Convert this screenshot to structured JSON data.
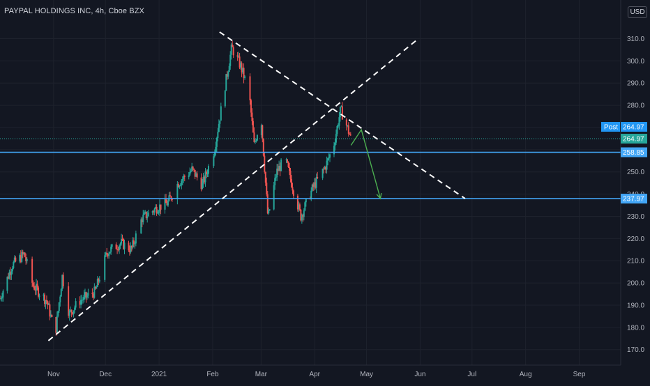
{
  "header": {
    "title": "PAYPAL HOLDINGS INC, 4h, Cboe BZX",
    "currency": "USD"
  },
  "price_tags": {
    "post_label": "Post",
    "post_value": "264.97",
    "last_value": "264.97",
    "level_1": "258.85",
    "level_2": "237.97"
  },
  "colors": {
    "background": "#131722",
    "up": "#26a69a",
    "down": "#ef5350",
    "level_line": "#42a5f5",
    "trend_line": "#ffffff",
    "projection": "#4caf50",
    "post_tag": "#2196f3",
    "last_tag": "#26a69a"
  },
  "chart_data": {
    "type": "candlestick",
    "title": "PAYPAL HOLDINGS INC, 4h, Cboe BZX",
    "interval": "4h",
    "exchange": "Cboe BZX",
    "currency": "USD",
    "x_ticks": [
      "Nov",
      "Dec",
      "2021",
      "Feb",
      "Mar",
      "Apr",
      "May",
      "Jun",
      "Jul",
      "Aug",
      "Sep"
    ],
    "y_ticks": [
      170,
      180,
      190,
      200,
      210,
      220,
      230,
      240,
      250,
      260,
      270,
      280,
      290,
      300,
      310
    ],
    "ylim": [
      163,
      318
    ],
    "xlim": [
      "2020-10-01",
      "2021-09-25"
    ],
    "grid": true,
    "price_path": [
      [
        "2020-10-01",
        193
      ],
      [
        "2020-10-08",
        208
      ],
      [
        "2020-10-15",
        213
      ],
      [
        "2020-10-20",
        199
      ],
      [
        "2020-10-28",
        192
      ],
      [
        "2020-11-02",
        177
      ],
      [
        "2020-11-06",
        203
      ],
      [
        "2020-11-10",
        186
      ],
      [
        "2020-11-16",
        192
      ],
      [
        "2020-11-25",
        196
      ],
      [
        "2020-12-02",
        214
      ],
      [
        "2020-12-10",
        218
      ],
      [
        "2020-12-16",
        215
      ],
      [
        "2020-12-22",
        229
      ],
      [
        "2020-12-31",
        234
      ],
      [
        "2021-01-06",
        236
      ],
      [
        "2021-01-12",
        245
      ],
      [
        "2021-01-20",
        251
      ],
      [
        "2021-01-26",
        244
      ],
      [
        "2021-02-02",
        260
      ],
      [
        "2021-02-08",
        288
      ],
      [
        "2021-02-12",
        306
      ],
      [
        "2021-02-17",
        298
      ],
      [
        "2021-02-22",
        286
      ],
      [
        "2021-02-25",
        262
      ],
      [
        "2021-03-01",
        275
      ],
      [
        "2021-03-05",
        229
      ],
      [
        "2021-03-10",
        250
      ],
      [
        "2021-03-15",
        256
      ],
      [
        "2021-03-19",
        244
      ],
      [
        "2021-03-24",
        230
      ],
      [
        "2021-03-31",
        243
      ],
      [
        "2021-04-07",
        252
      ],
      [
        "2021-04-12",
        262
      ],
      [
        "2021-04-16",
        278
      ],
      [
        "2021-04-19",
        272
      ],
      [
        "2021-04-22",
        264.97
      ]
    ],
    "horizontal_levels": [
      258.85,
      237.97
    ],
    "trend_lines": [
      {
        "from": [
          "2020-10-29",
          174
        ],
        "to": [
          "2021-05-31",
          310
        ]
      },
      {
        "from": [
          "2021-02-05",
          313
        ],
        "to": [
          "2021-06-27",
          238
        ]
      }
    ],
    "projection": [
      [
        "2021-04-22",
        262
      ],
      [
        "2021-04-28",
        269
      ],
      [
        "2021-05-09",
        238
      ]
    ],
    "last_price": 264.97,
    "post_price": 264.97
  }
}
